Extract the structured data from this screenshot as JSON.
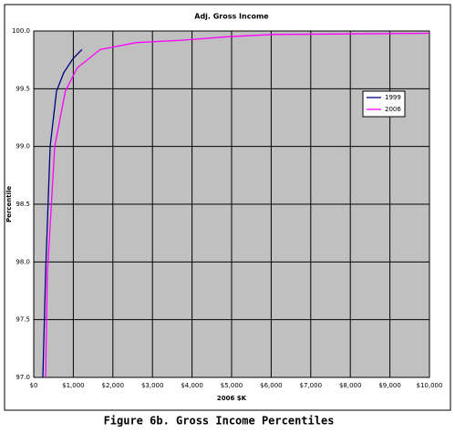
{
  "chart_data": {
    "type": "line",
    "title": "Adj. Gross Income",
    "x_label": "2006 $K",
    "y_label": "Percentile",
    "caption": "Figure 6b. Gross Income Percentiles",
    "series": [
      {
        "name": "1999",
        "color": "#000080",
        "x": [
          230,
          300,
          415,
          575,
          760,
          990,
          1220
        ],
        "values": [
          97.0,
          97.9,
          99.0,
          99.48,
          99.64,
          99.76,
          99.84
        ]
      },
      {
        "name": "2006",
        "color": "#ff00ff",
        "x": [
          300,
          345,
          530,
          800,
          1100,
          1680,
          2600,
          3750,
          4900,
          6060,
          10000
        ],
        "values": [
          97.0,
          97.9,
          99.0,
          99.48,
          99.68,
          99.84,
          99.9,
          99.92,
          99.95,
          99.97,
          99.98
        ]
      }
    ],
    "xlim": [
      0,
      10000
    ],
    "ylim": [
      97,
      100
    ],
    "xticks": [
      {
        "value": 0,
        "label": "$0"
      },
      {
        "value": 1000,
        "label": "$1,000"
      },
      {
        "value": 2000,
        "label": "$2,000"
      },
      {
        "value": 3000,
        "label": "$3,000"
      },
      {
        "value": 4000,
        "label": "$4,000"
      },
      {
        "value": 5000,
        "label": "$5,000"
      },
      {
        "value": 6000,
        "label": "$6,000"
      },
      {
        "value": 7000,
        "label": "$7,000"
      },
      {
        "value": 8000,
        "label": "$8,000"
      },
      {
        "value": 9000,
        "label": "$9,000"
      },
      {
        "value": 10000,
        "label": "$10,000"
      }
    ],
    "yticks": [
      {
        "value": 97,
        "label": "97.0"
      },
      {
        "value": 97.5,
        "label": "97.5"
      },
      {
        "value": 98,
        "label": "98.0"
      },
      {
        "value": 98.5,
        "label": "98.5"
      },
      {
        "value": 99,
        "label": "99.0"
      },
      {
        "value": 99.5,
        "label": "99.5"
      },
      {
        "value": 100,
        "label": "100.0"
      }
    ],
    "grid": true,
    "legend": "right"
  }
}
